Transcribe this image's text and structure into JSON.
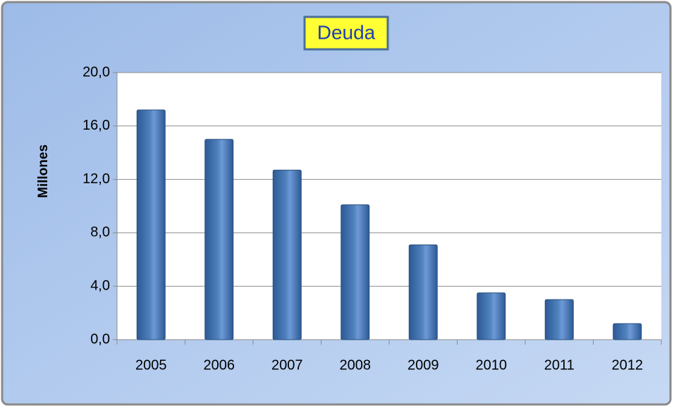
{
  "chart_data": {
    "type": "bar",
    "title": "Deuda",
    "y_label": "Millones",
    "categories": [
      "2005",
      "2006",
      "2007",
      "2008",
      "2009",
      "2010",
      "2011",
      "2012"
    ],
    "values": [
      17.2,
      15.0,
      12.7,
      10.1,
      7.1,
      3.5,
      3.0,
      1.2
    ],
    "color": "#4f81bd",
    "ylim": [
      0,
      20
    ],
    "yticks": [
      {
        "value": 0,
        "label": "0,0"
      },
      {
        "value": 4,
        "label": "4,0"
      },
      {
        "value": 8,
        "label": "8,0"
      },
      {
        "value": 12,
        "label": "12,0"
      },
      {
        "value": 16,
        "label": "16,0"
      },
      {
        "value": 20,
        "label": "20,0"
      }
    ],
    "grid": true
  }
}
